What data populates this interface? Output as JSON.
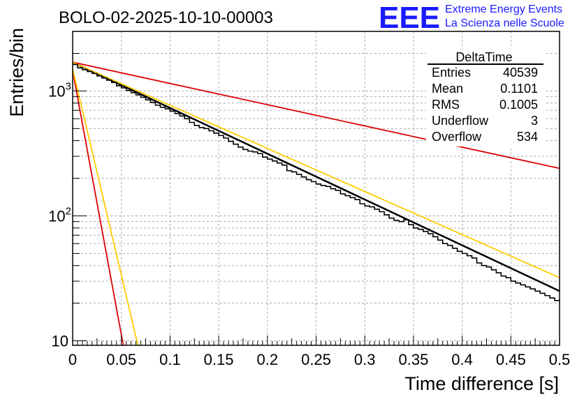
{
  "chart_data": {
    "type": "line",
    "title": "BOLO-02-2025-10-10-00003",
    "xlabel": "Time difference [s]",
    "ylabel": "Entries/bin",
    "xlim": [
      0,
      0.5
    ],
    "ylim": [
      9.2,
      3000
    ],
    "yscale": "log",
    "grid": true,
    "x_ticks": [
      "0",
      "0.05",
      "0.1",
      "0.15",
      "0.2",
      "0.25",
      "0.3",
      "0.35",
      "0.4",
      "0.45",
      "0.5"
    ],
    "y_ticks": [
      {
        "base": "10",
        "exp": "",
        "value": 10
      },
      {
        "base": "10",
        "exp": "2",
        "value": 100
      },
      {
        "base": "10",
        "exp": "3",
        "value": 1000
      }
    ],
    "logo": {
      "mark": "EEE",
      "line1": "Extreme Energy Events",
      "line2": "La Scienza nelle Scuole",
      "color": "#1a1aff"
    },
    "stats_box": {
      "name": "DeltaTime",
      "rows": [
        {
          "label": "Entries",
          "value": "40539"
        },
        {
          "label": "Mean",
          "value": "0.1101"
        },
        {
          "label": "RMS",
          "value": "0.1005"
        },
        {
          "label": "Underflow",
          "value": "3"
        },
        {
          "label": "Overflow",
          "value": "534"
        }
      ]
    },
    "series": [
      {
        "name": "histogram",
        "kind": "step",
        "color": "#000000",
        "bin_width": 0.005,
        "values": [
          1630,
          1530,
          1480,
          1430,
          1380,
          1320,
          1270,
          1220,
          1170,
          1100,
          1060,
          1010,
          970,
          930,
          890,
          850,
          810,
          770,
          740,
          720,
          690,
          660,
          630,
          600,
          560,
          530,
          510,
          500,
          480,
          460,
          440,
          420,
          395,
          375,
          355,
          340,
          330,
          325,
          315,
          295,
          285,
          275,
          265,
          255,
          230,
          225,
          215,
          205,
          195,
          188,
          180,
          175,
          172,
          165,
          160,
          150,
          145,
          140,
          135,
          125,
          120,
          118,
          113,
          108,
          102,
          96,
          92,
          90,
          93,
          85,
          80,
          78,
          75,
          72,
          68,
          64,
          60,
          58,
          55,
          52,
          50,
          48,
          46,
          42,
          40,
          39,
          37,
          35,
          33,
          32,
          30,
          29,
          28,
          27,
          26,
          25,
          24,
          23,
          22,
          21
        ]
      },
      {
        "name": "fit-total",
        "kind": "line",
        "color": "#000000",
        "x": [
          0,
          0.5
        ],
        "y": [
          1700,
          25
        ]
      },
      {
        "name": "fit-slow-red",
        "kind": "line",
        "color": "#dd0000",
        "x": [
          0,
          0.5
        ],
        "y": [
          1700,
          240
        ]
      },
      {
        "name": "fit-slow-orange",
        "kind": "line",
        "color": "#ffcc00",
        "x": [
          0,
          0.5
        ],
        "y": [
          1700,
          32
        ]
      },
      {
        "name": "fit-fast-red",
        "kind": "line",
        "color": "#dd0000",
        "x": [
          0,
          0.052
        ],
        "y": [
          1450,
          9.2
        ]
      },
      {
        "name": "fit-fast-orange",
        "kind": "line",
        "color": "#ffcc00",
        "x": [
          0,
          0.067
        ],
        "y": [
          1500,
          9.2
        ]
      }
    ]
  }
}
